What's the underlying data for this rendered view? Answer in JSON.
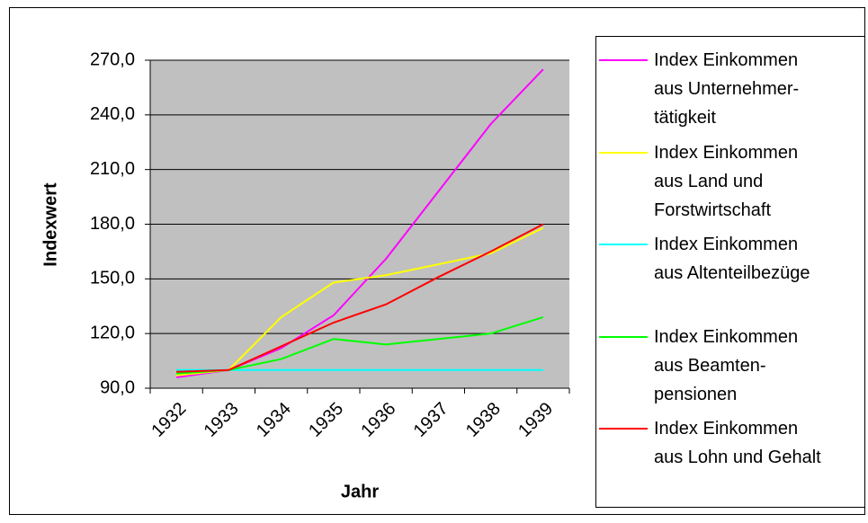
{
  "chart_data": {
    "type": "line",
    "x_label": "Jahr",
    "y_label": "Indexwert",
    "categories": [
      "1932",
      "1933",
      "1934",
      "1935",
      "1936",
      "1937",
      "1938",
      "1939"
    ],
    "ylim": [
      90,
      270
    ],
    "yticks": [
      {
        "value": 90,
        "label": "90,0"
      },
      {
        "value": 120,
        "label": "120,0"
      },
      {
        "value": 150,
        "label": "150,0"
      },
      {
        "value": 180,
        "label": "180,0"
      },
      {
        "value": 210,
        "label": "210,0"
      },
      {
        "value": 240,
        "label": "240,0"
      },
      {
        "value": 270,
        "label": "270,0"
      }
    ],
    "grid": true,
    "legend": "right",
    "series": [
      {
        "name": "Index Einkommen\naus Unternehmer-\ntätigkeit",
        "color": "#ff00ff",
        "values": [
          96,
          100,
          112,
          130,
          161,
          198,
          235,
          265
        ]
      },
      {
        "name": "Index Einkommen\naus Land und\nForstwirtschaft",
        "color": "#ffff00",
        "values": [
          97,
          100,
          129,
          148,
          152,
          158,
          164,
          178
        ]
      },
      {
        "name": "Index Einkommen\naus Altenteilbezüge",
        "color": "#00ffff",
        "values": [
          100,
          100,
          100,
          100,
          100,
          100,
          100,
          100
        ]
      },
      {
        "name": "Index Einkommen\naus Beamten-\npensionen",
        "color": "#00ff00",
        "values": [
          98,
          100,
          106,
          117,
          114,
          117,
          120,
          129
        ]
      },
      {
        "name": "Index Einkommen\naus Lohn und Gehalt",
        "color": "#ff0000",
        "values": [
          99,
          100,
          113,
          126,
          136,
          151,
          165,
          180
        ]
      }
    ]
  }
}
